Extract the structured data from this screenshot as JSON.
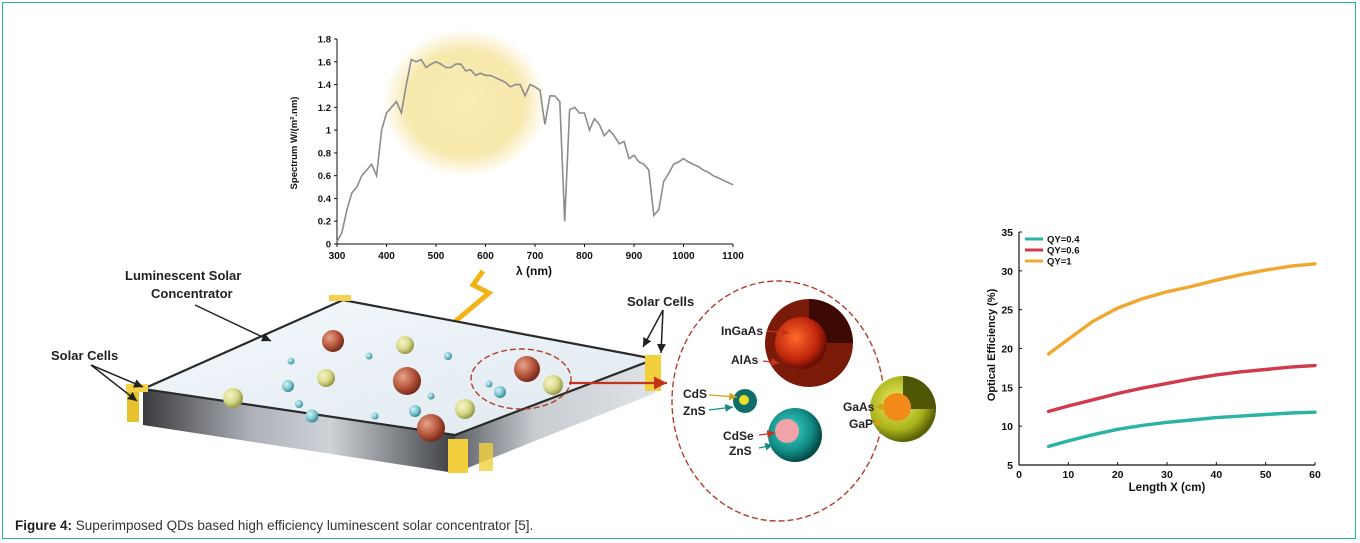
{
  "caption": {
    "label": "Figure 4:",
    "text": " Superimposed QDs based high efficiency luminescent solar concentrator [5]."
  },
  "illustration": {
    "lsc_label_line1": "Luminescent Solar",
    "lsc_label_line2": "Concentrator",
    "solar_cells_left": "Solar Cells",
    "solar_cells_right": "Solar Cells",
    "qd_labels": {
      "ingaas": "InGaAs",
      "alas": "AlAs",
      "cds": "CdS",
      "zns_1": "ZnS",
      "cdse": "CdSe",
      "zns_2": "ZnS",
      "gaas": "GaAs",
      "gap": "GaP"
    }
  },
  "colors": {
    "frame_border": "#27b59a",
    "spectrum_line": "#8c8c8c",
    "sun_glow": "#f6e7a6",
    "qy04": "#2bb3a3",
    "qy06": "#d03a4a",
    "qy1": "#f0a830"
  },
  "chart_data": [
    {
      "type": "line",
      "title": "",
      "xlabel": "λ (nm)",
      "ylabel": "Spectrum W/(m².nm)",
      "xlim": [
        300,
        1100
      ],
      "ylim": [
        0,
        1.8
      ],
      "xticks": [
        300,
        400,
        500,
        600,
        700,
        800,
        900,
        1000,
        1100
      ],
      "yticks": [
        0,
        0.2,
        0.4,
        0.6,
        0.8,
        1,
        1.2,
        1.4,
        1.6,
        1.8
      ],
      "ytick_labels": [
        "0",
        "0.2",
        "0.4",
        "0.6",
        "0.8",
        "1",
        "1.2",
        "1.4",
        "1.6",
        "1.8"
      ],
      "grid": false,
      "series": [
        {
          "x": [
            300,
            310,
            320,
            330,
            340,
            350,
            360,
            370,
            380,
            390,
            400,
            410,
            420,
            430,
            440,
            450,
            460,
            470,
            480,
            490,
            500,
            510,
            520,
            530,
            540,
            550,
            560,
            570,
            580,
            590,
            600,
            610,
            620,
            630,
            640,
            650,
            660,
            670,
            680,
            690,
            700,
            710,
            720,
            730,
            740,
            750,
            760,
            770,
            780,
            790,
            800,
            810,
            820,
            830,
            840,
            850,
            860,
            870,
            880,
            890,
            900,
            910,
            920,
            930,
            940,
            950,
            960,
            970,
            980,
            990,
            1000,
            1010,
            1020,
            1030,
            1040,
            1050,
            1060,
            1070,
            1080,
            1090,
            1100
          ],
          "y": [
            0.02,
            0.1,
            0.3,
            0.45,
            0.5,
            0.6,
            0.65,
            0.7,
            0.6,
            1.0,
            1.15,
            1.2,
            1.25,
            1.15,
            1.4,
            1.62,
            1.6,
            1.62,
            1.55,
            1.58,
            1.6,
            1.58,
            1.55,
            1.55,
            1.58,
            1.58,
            1.52,
            1.53,
            1.48,
            1.5,
            1.48,
            1.48,
            1.46,
            1.44,
            1.42,
            1.38,
            1.4,
            1.4,
            1.3,
            1.4,
            1.38,
            1.35,
            1.05,
            1.3,
            1.3,
            1.25,
            0.2,
            1.18,
            1.2,
            1.15,
            1.15,
            1.0,
            1.1,
            1.05,
            0.95,
            1.0,
            0.95,
            0.88,
            0.9,
            0.75,
            0.78,
            0.72,
            0.7,
            0.65,
            0.25,
            0.3,
            0.55,
            0.62,
            0.7,
            0.72,
            0.75,
            0.72,
            0.7,
            0.68,
            0.65,
            0.63,
            0.6,
            0.58,
            0.56,
            0.54,
            0.52
          ]
        }
      ]
    },
    {
      "type": "line",
      "title": "",
      "xlabel": "Length X (cm)",
      "ylabel": "Optical Efficiency (%)",
      "xlim": [
        0,
        60
      ],
      "ylim": [
        5,
        35
      ],
      "xticks": [
        0,
        10,
        20,
        30,
        40,
        50,
        60
      ],
      "yticks": [
        5,
        10,
        15,
        20,
        25,
        30,
        35
      ],
      "grid": false,
      "legend": "top-left",
      "x": [
        6,
        10,
        15,
        20,
        25,
        30,
        35,
        40,
        45,
        50,
        55,
        60
      ],
      "series": [
        {
          "name": "QY=0.4",
          "color": "#2bb3a3",
          "values": [
            7.4,
            8.1,
            8.9,
            9.6,
            10.1,
            10.5,
            10.8,
            11.1,
            11.3,
            11.5,
            11.7,
            11.8
          ]
        },
        {
          "name": "QY=0.6",
          "color": "#d03a4a",
          "values": [
            11.9,
            12.6,
            13.4,
            14.2,
            14.9,
            15.5,
            16.1,
            16.6,
            17.0,
            17.3,
            17.6,
            17.8
          ]
        },
        {
          "name": "QY=1",
          "color": "#f0a830",
          "values": [
            19.3,
            21.2,
            23.5,
            25.2,
            26.4,
            27.3,
            28.0,
            28.8,
            29.5,
            30.1,
            30.6,
            30.9
          ]
        }
      ]
    }
  ]
}
